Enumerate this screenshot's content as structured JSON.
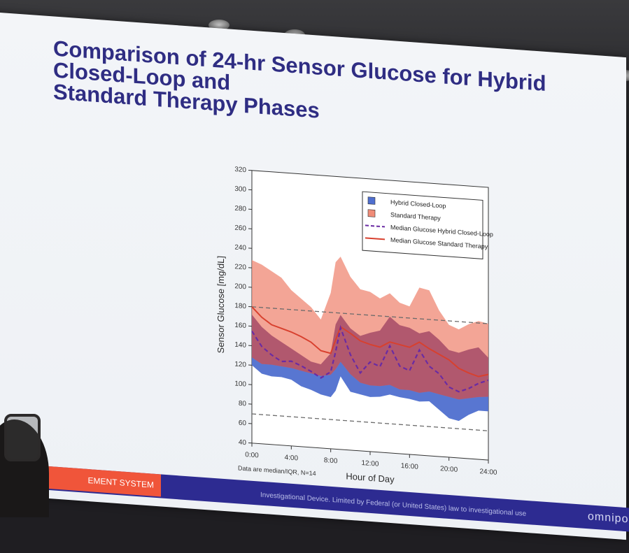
{
  "slide": {
    "title_line1": "Comparison of 24-hr Sensor Glucose for Hybrid Closed-Loop and",
    "title_line2": "Standard Therapy Phases",
    "footer_tag": "EMENT SYSTEM",
    "footer_note": "Investigational Device. Limited by Federal (or United States) law to investigational use",
    "brand": "omnipod"
  },
  "chart_data": {
    "type": "area",
    "xlabel": "Hour of Day",
    "ylabel": "Sensor Glucose [mg/dL]",
    "note": "Data are median/IQR, N=14",
    "xlim": [
      0,
      24
    ],
    "ylim": [
      40,
      320
    ],
    "x_ticks": [
      "0:00",
      "4:00",
      "8:00",
      "12:00",
      "16:00",
      "20:00",
      "24:00"
    ],
    "y_ticks": [
      "40",
      "60",
      "80",
      "100",
      "120",
      "140",
      "160",
      "180",
      "200",
      "220",
      "240",
      "260",
      "280",
      "300",
      "320"
    ],
    "reference_lines": [
      70,
      180
    ],
    "legend": {
      "placement": "top-right",
      "entries": [
        "Hybrid Closed-Loop",
        "Standard Therapy",
        "Median Glucose Hybrid Closed-Loop",
        "Median Glucose Standard Therapy"
      ]
    },
    "colors": {
      "hcl_band": "#4f6fcf",
      "st_band": "#f08c78",
      "overlap": "#a03c5c",
      "hcl_median": "#6a2ba3",
      "st_median": "#d8402e",
      "reference": "#6b6b6b"
    },
    "x": [
      0,
      1,
      2,
      3,
      4,
      5,
      6,
      7,
      8,
      8.5,
      9,
      10,
      11,
      12,
      13,
      14,
      15,
      16,
      17,
      18,
      19,
      20,
      21,
      22,
      23,
      24
    ],
    "series": [
      {
        "name": "Hybrid Closed-Loop",
        "q1": [
          120,
          112,
          110,
          110,
          108,
          102,
          99,
          95,
          93,
          100,
          115,
          100,
          98,
          96,
          97,
          100,
          98,
          97,
          95,
          96,
          88,
          80,
          78,
          85,
          90,
          90
        ],
        "q3": [
          172,
          160,
          152,
          146,
          140,
          134,
          128,
          126,
          138,
          168,
          178,
          165,
          158,
          162,
          165,
          180,
          172,
          170,
          165,
          168,
          160,
          150,
          148,
          152,
          155,
          145
        ]
      },
      {
        "name": "Standard Therapy",
        "q1": [
          128,
          122,
          122,
          121,
          120,
          118,
          116,
          114,
          116,
          122,
          130,
          118,
          110,
          108,
          108,
          110,
          106,
          106,
          104,
          106,
          104,
          102,
          100,
          102,
          104,
          105
        ],
        "q3": [
          228,
          224,
          218,
          212,
          200,
          192,
          184,
          172,
          200,
          232,
          238,
          218,
          206,
          204,
          198,
          204,
          195,
          192,
          212,
          210,
          190,
          176,
          172,
          178,
          182,
          180
        ]
      },
      {
        "name": "Median Glucose Hybrid Closed-Loop",
        "values": [
          155,
          140,
          132,
          126,
          127,
          123,
          118,
          112,
          119,
          140,
          165,
          138,
          120,
          132,
          128,
          150,
          130,
          126,
          148,
          132,
          125,
          112,
          108,
          112,
          118,
          122
        ]
      },
      {
        "name": "Median Glucose Standard Therapy",
        "values": [
          180,
          170,
          163,
          160,
          157,
          153,
          148,
          140,
          138,
          152,
          166,
          160,
          153,
          150,
          148,
          154,
          152,
          150,
          156,
          150,
          145,
          140,
          132,
          128,
          125,
          128
        ]
      }
    ]
  }
}
